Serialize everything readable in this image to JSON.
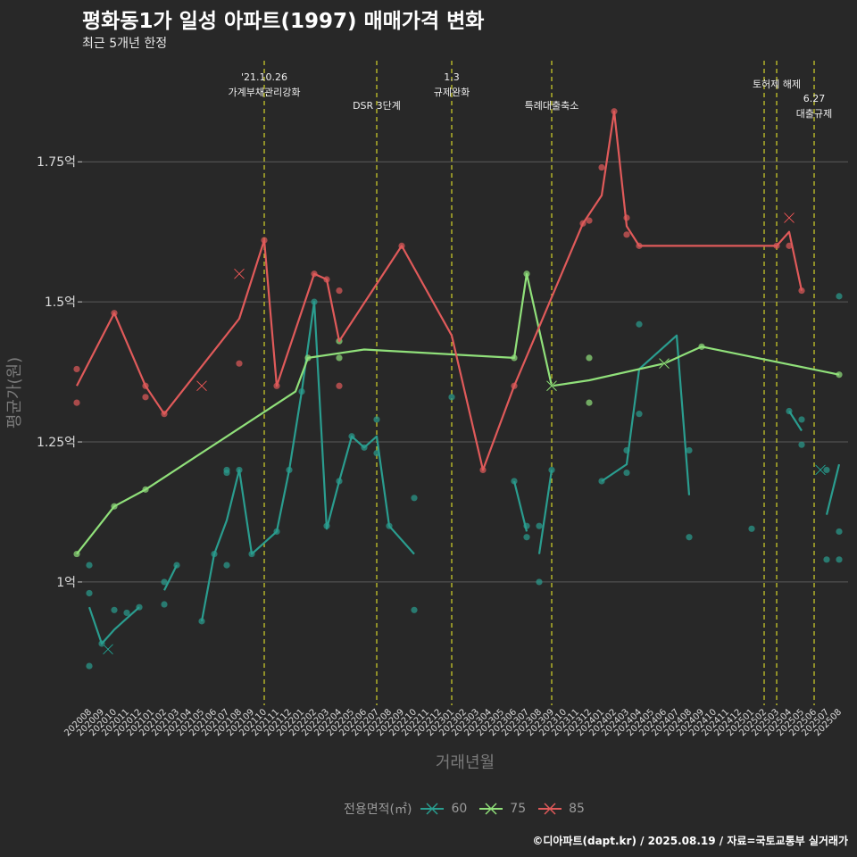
{
  "title": "평화동1가 일성 아파트(1997) 매매가격 변화",
  "subtitle": "최근 5개년 한정",
  "footer": "©디아파트(dapt.kr) / 2025.08.19 / 자료=국토교통부 실거래가",
  "colors": {
    "background": "#282828",
    "grid": "#5a5a5a",
    "event_line": "#d4d42a",
    "s60": "#2a9d8f",
    "s75": "#90e07a",
    "s85": "#e05a5a"
  },
  "chart_data": {
    "type": "line",
    "xlabel": "거래년월",
    "ylabel": "평균가(원)",
    "ylim": [
      0.78,
      1.94
    ],
    "y_ticks": [
      {
        "value": 1.0,
        "label": "1억"
      },
      {
        "value": 1.25,
        "label": "1.25억"
      },
      {
        "value": 1.5,
        "label": "1.5억"
      },
      {
        "value": 1.75,
        "label": "1.75억"
      }
    ],
    "x_categories": [
      "202008",
      "202009",
      "202010",
      "202011",
      "202012",
      "202101",
      "202102",
      "202103",
      "202104",
      "202105",
      "202106",
      "202107",
      "202108",
      "202109",
      "202110",
      "202111",
      "202112",
      "202201",
      "202202",
      "202203",
      "202204",
      "202205",
      "202206",
      "202207",
      "202208",
      "202209",
      "202210",
      "202211",
      "202212",
      "202301",
      "202302",
      "202303",
      "202304",
      "202305",
      "202306",
      "202307",
      "202308",
      "202309",
      "202310",
      "202311",
      "202312",
      "202401",
      "202402",
      "202403",
      "202404",
      "202405",
      "202406",
      "202407",
      "202408",
      "202409",
      "202410",
      "202411",
      "202412",
      "202501",
      "202502",
      "202503",
      "202504",
      "202505",
      "202506",
      "202507",
      "202508"
    ],
    "grid": true,
    "legend": {
      "title": "전용면적(㎡)",
      "position": "bottom",
      "entries": [
        "60",
        "75",
        "85"
      ]
    },
    "events": [
      {
        "x": 14.0,
        "label_lines": [
          "'21.10.26",
          "가계부채관리강화"
        ],
        "row": 0
      },
      {
        "x": 23.0,
        "label_lines": [
          "DSR 3단계"
        ],
        "row": 2
      },
      {
        "x": 29.0,
        "label_lines": [
          "1.3",
          "규제완화"
        ],
        "row": 0
      },
      {
        "x": 37.0,
        "label_lines": [
          "특례대출축소"
        ],
        "row": 2
      },
      {
        "x": 54.0,
        "label_lines": [],
        "row": 0
      },
      {
        "x": 55.0,
        "label_lines": [
          "토허제 해제"
        ],
        "row": 1
      },
      {
        "x": 58.0,
        "label_lines": [
          "6.27",
          "대출규제"
        ],
        "row": 3
      }
    ],
    "series": [
      {
        "name": "60",
        "color_key": "s60",
        "line_segments": [
          [
            [
              0.0,
              0.955
            ],
            [
              1.0,
              0.89
            ],
            [
              2.0,
              0.915
            ],
            [
              3.0,
              0.935
            ],
            [
              4.0,
              0.955
            ]
          ],
          [
            [
              6.0,
              0.985
            ],
            [
              7.0,
              1.03
            ]
          ],
          [
            [
              9.0,
              0.93
            ],
            [
              10.0,
              1.05
            ],
            [
              11.0,
              1.11
            ],
            [
              12.0,
              1.2
            ],
            [
              13.0,
              1.05
            ],
            [
              15.0,
              1.09
            ],
            [
              16.0,
              1.2
            ],
            [
              17.0,
              1.34
            ],
            [
              18.0,
              1.5
            ],
            [
              19.0,
              1.095
            ],
            [
              20.0,
              1.18
            ],
            [
              21.0,
              1.26
            ],
            [
              22.0,
              1.24
            ],
            [
              23.0,
              1.26
            ],
            [
              24.0,
              1.1
            ],
            [
              26.0,
              1.05
            ]
          ],
          [
            [
              34.0,
              1.18
            ],
            [
              35.0,
              1.09
            ]
          ],
          [
            [
              36.0,
              1.05
            ],
            [
              37.0,
              1.2
            ]
          ],
          [
            [
              41.0,
              1.18
            ],
            [
              43.0,
              1.21
            ],
            [
              44.0,
              1.38
            ],
            [
              47.0,
              1.44
            ],
            [
              48.0,
              1.155
            ]
          ],
          [
            [
              56.0,
              1.305
            ],
            [
              57.0,
              1.27
            ]
          ],
          [
            [
              58.5,
              1.2
            ]
          ],
          [
            [
              59.0,
              1.12
            ],
            [
              60.0,
              1.21
            ]
          ]
        ],
        "points": [
          [
            0.0,
            0.98
          ],
          [
            0.0,
            0.85
          ],
          [
            0.0,
            1.03
          ],
          [
            1.0,
            0.89
          ],
          [
            2.0,
            0.95
          ],
          [
            3.0,
            0.945
          ],
          [
            4.0,
            0.955
          ],
          [
            6.0,
            0.96
          ],
          [
            6.0,
            1.0
          ],
          [
            7.0,
            1.03
          ],
          [
            9.0,
            0.93
          ],
          [
            10.0,
            1.05
          ],
          [
            11.0,
            1.195
          ],
          [
            11.0,
            1.2
          ],
          [
            11.0,
            1.03
          ],
          [
            12.0,
            1.2
          ],
          [
            13.0,
            1.05
          ],
          [
            15.0,
            1.09
          ],
          [
            16.0,
            1.2
          ],
          [
            17.0,
            1.34
          ],
          [
            18.0,
            1.5
          ],
          [
            19.0,
            1.1
          ],
          [
            20.0,
            1.18
          ],
          [
            21.0,
            1.26
          ],
          [
            22.0,
            1.24
          ],
          [
            23.0,
            1.23
          ],
          [
            23.0,
            1.29
          ],
          [
            24.0,
            1.1
          ],
          [
            26.0,
            1.15
          ],
          [
            26.0,
            0.95
          ],
          [
            29.0,
            1.33
          ],
          [
            34.0,
            1.18
          ],
          [
            35.0,
            1.08
          ],
          [
            35.0,
            1.1
          ],
          [
            36.0,
            1.1
          ],
          [
            36.0,
            1.0
          ],
          [
            37.0,
            1.2
          ],
          [
            41.0,
            1.18
          ],
          [
            43.0,
            1.235
          ],
          [
            43.0,
            1.195
          ],
          [
            44.0,
            1.46
          ],
          [
            44.0,
            1.3
          ],
          [
            48.0,
            1.235
          ],
          [
            48.0,
            1.08
          ],
          [
            53.0,
            1.095
          ],
          [
            56.0,
            1.305
          ],
          [
            57.0,
            1.29
          ],
          [
            57.0,
            1.245
          ],
          [
            59.0,
            1.2
          ],
          [
            59.0,
            1.04
          ],
          [
            60.0,
            1.51
          ],
          [
            60.0,
            1.09
          ],
          [
            60.0,
            1.04
          ]
        ],
        "markers_x": [
          [
            1.5,
            0.88
          ],
          [
            58.5,
            1.2
          ]
        ]
      },
      {
        "name": "75",
        "color_key": "s75",
        "line_segments": [
          [
            [
              -1.0,
              1.05
            ],
            [
              2.0,
              1.135
            ],
            [
              4.5,
              1.165
            ],
            [
              16.5,
              1.34
            ],
            [
              17.5,
              1.4
            ],
            [
              22.0,
              1.415
            ],
            [
              34.0,
              1.4
            ],
            [
              35.0,
              1.55
            ],
            [
              37.0,
              1.35
            ],
            [
              40.0,
              1.36
            ],
            [
              46.0,
              1.39
            ],
            [
              49.0,
              1.42
            ],
            [
              60.0,
              1.37
            ]
          ]
        ],
        "points": [
          [
            -1.0,
            1.05
          ],
          [
            2.0,
            1.135
          ],
          [
            4.5,
            1.165
          ],
          [
            17.5,
            1.4
          ],
          [
            20.0,
            1.4
          ],
          [
            20.0,
            1.43
          ],
          [
            34.0,
            1.4
          ],
          [
            35.0,
            1.55
          ],
          [
            40.0,
            1.4
          ],
          [
            40.0,
            1.32
          ],
          [
            49.0,
            1.42
          ],
          [
            60.0,
            1.37
          ]
        ],
        "markers_x": [
          [
            37.0,
            1.35
          ],
          [
            46.0,
            1.39
          ]
        ]
      },
      {
        "name": "85",
        "color_key": "s85",
        "line_segments": [
          [
            [
              -1.0,
              1.35
            ],
            [
              2.0,
              1.48
            ],
            [
              4.5,
              1.35
            ],
            [
              6.0,
              1.3
            ],
            [
              12.0,
              1.47
            ],
            [
              14.0,
              1.61
            ],
            [
              15.0,
              1.35
            ],
            [
              18.0,
              1.55
            ],
            [
              19.0,
              1.54
            ],
            [
              20.0,
              1.43
            ],
            [
              25.0,
              1.6
            ],
            [
              29.0,
              1.44
            ],
            [
              31.5,
              1.2
            ],
            [
              34.0,
              1.35
            ],
            [
              39.5,
              1.64
            ],
            [
              41.0,
              1.69
            ],
            [
              42.0,
              1.84
            ],
            [
              43.0,
              1.635
            ],
            [
              44.0,
              1.6
            ],
            [
              55.0,
              1.6
            ],
            [
              56.0,
              1.625
            ],
            [
              57.0,
              1.52
            ]
          ]
        ],
        "points": [
          [
            -1.0,
            1.38
          ],
          [
            -1.0,
            1.32
          ],
          [
            2.0,
            1.48
          ],
          [
            4.5,
            1.35
          ],
          [
            4.5,
            1.33
          ],
          [
            6.0,
            1.3
          ],
          [
            12.0,
            1.39
          ],
          [
            14.0,
            1.61
          ],
          [
            15.0,
            1.35
          ],
          [
            18.0,
            1.55
          ],
          [
            19.0,
            1.54
          ],
          [
            20.0,
            1.35
          ],
          [
            20.0,
            1.52
          ],
          [
            25.0,
            1.6
          ],
          [
            31.5,
            1.2
          ],
          [
            34.0,
            1.35
          ],
          [
            39.5,
            1.64
          ],
          [
            40.0,
            1.645
          ],
          [
            41.0,
            1.74
          ],
          [
            42.0,
            1.84
          ],
          [
            43.0,
            1.65
          ],
          [
            43.0,
            1.62
          ],
          [
            44.0,
            1.6
          ],
          [
            55.0,
            1.6
          ],
          [
            56.0,
            1.6
          ],
          [
            57.0,
            1.52
          ]
        ],
        "markers_x": [
          [
            12.0,
            1.55
          ],
          [
            9.0,
            1.35
          ],
          [
            56.0,
            1.65
          ]
        ]
      }
    ]
  }
}
